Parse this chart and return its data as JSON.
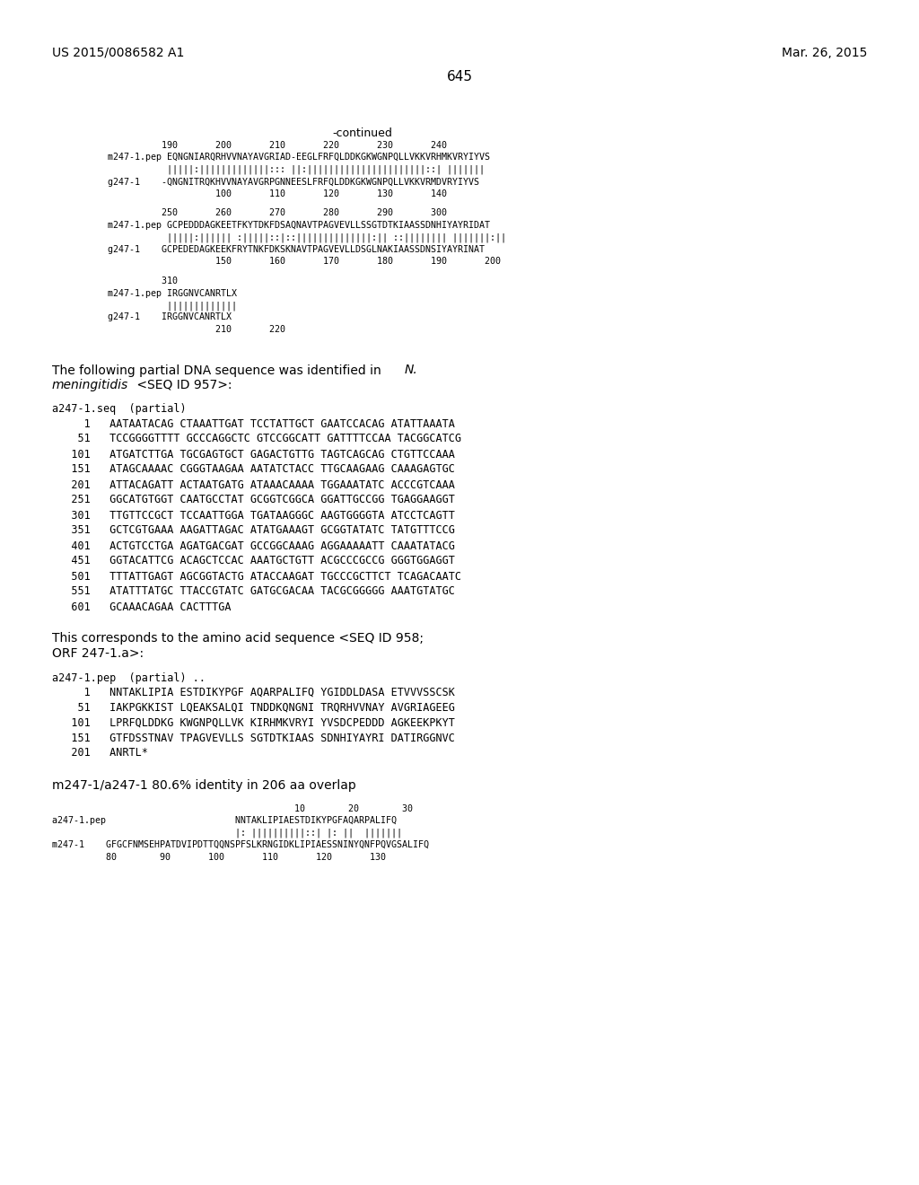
{
  "background_color": "#ffffff",
  "header_left": "US 2015/0086582 A1",
  "header_right": "Mar. 26, 2015",
  "page_number": "645",
  "continued_label": "-continued",
  "block1": [
    "          190       200       210       220       230       240",
    "m247-1.pep EQNGNIARQRHVVNAYAVGRIAD-EEGLFRFQLDDKGKWGNPQLLVKKVRHMKVRYIYVS",
    "           |||||:|||||||||||||::: ||:||||||||||||||||||||||::| |||||||",
    "g247-1    -QNGNITRQKHVVNAYAVGRPGNNEESLFRFQLDDKGKWGNPQLLVKKVRMDVRYIYVS",
    "                    100       110       120       130       140"
  ],
  "block2": [
    "          250       260       270       280       290       300",
    "m247-1.pep GCPEDDDAGKEETFKYTDKFDSAQNAVTPAGVEVLLSSGTDTKIAASSDNHIYAYRIDAT",
    "           |||||:|||||| :|||||::|::||||||||||||||:|| ::|||||||| |||||||:||",
    "g247-1    GCPEDEDAGKEEKFRYTNKFDKSKNAVTPAGVEVLLDSGLNAKIAASSDNSIYAYRINAT",
    "                    150       160       170       180       190       200"
  ],
  "block3": [
    "          310",
    "m247-1.pep IRGGNVCANRTLX",
    "           |||||||||||||",
    "g247-1    IRGGNVCANRTLX",
    "                    210       220"
  ],
  "para1a": "The following partial DNA sequence was identified in ",
  "para1b": "N.",
  "para1c": "meningitidis",
  "para1d": " <SEQ ID 957>:",
  "dna_label": "a247-1.seq  (partial)",
  "dna_lines": [
    "     1   AATAATACAG CTAAATTGAT TCCTATTGCT GAATCCACAG ATATTAAATA",
    "    51   TCCGGGGTTTT GCCCAGGCTC GTCCGGCATT GATTTTCCAA TACGGCATCG",
    "   101   ATGATCTTGA TGCGAGTGCT GAGACTGTTG TAGTCAGCAG CTGTTCCAAA",
    "   151   ATAGCAAAAC CGGGTAAGAA AATATCTACC TTGCAAGAAG CAAAGAGTGC",
    "   201   ATTACAGATT ACTAATGATG ATAAACAAAA TGGAAATATC ACCCGTCAAA",
    "   251   GGCATGTGGT CAATGCCTAT GCGGTCGGCA GGATTGCCGG TGAGGAAGGT",
    "   301   TTGTTCCGCT TCCAATTGGA TGATAAGGGC AAGTGGGGTA ATCCTCAGTT",
    "   351   GCTCGTGAAA AAGATTAGAC ATATGAAAGT GCGGTATATC TATGTTTCCG",
    "   401   ACTGTCCTGA AGATGACGAT GCCGGCAAAG AGGAAAAATT CAAATATACG",
    "   451   GGTACATTCG ACAGCTCCAC AAATGCTGTT ACGCCCGCCG GGGTGGAGGT",
    "   501   TTTATTGAGT AGCGGTACTG ATACCAAGAT TGCCCGCTTCT TCAGACAATC",
    "   551   ATATTTATGC TTACCGTATC GATGCGACAA TACGCGGGGG AAATGTATGC",
    "   601   GCAAACAGAA CACTTTGA"
  ],
  "para2a": "This corresponds to the amino acid sequence <SEQ ID 958;",
  "para2b": "ORF 247-1.a>:",
  "pep_label": "a247-1.pep  (partial) ..",
  "pep_lines": [
    "     1   NNTAKLIPIA ESTDIKYPGF AQARPALIFQ YGIDDLDASA ETVVVSSCSK",
    "    51   IAKPGKKIST LQEAKSALQI TNDDKQNGNI TRQRHVVNAY AVGRIAGEEG",
    "   101   LPRFQLDDKG KWGNPQLLVK KIRHMKVRYI YVSDCPEDDD AGKEEKPKYT",
    "   151   GTFDSSTNAV TPAGVEVLLS SGTDTKIAAS SDNHIYAYRI DATIRGGNVC",
    "   201   ANRTL*"
  ],
  "para3": "m247-1/a247-1 80.6% identity in 206 aa overlap",
  "block4": [
    "                                             10        20        30",
    "a247-1.pep                        NNTAKLIPIAESTDIKYPGFAQARPALIFQ",
    "                                  |: ||||||||||::| |: ||  |||||||",
    "m247-1    GFGCFNMSEHPATDVIPDTTQQNSPFSLKRNGIDKLIPIAESSNINYQNFPQVGSALIFQ",
    "          80        90       100       110       120       130"
  ]
}
